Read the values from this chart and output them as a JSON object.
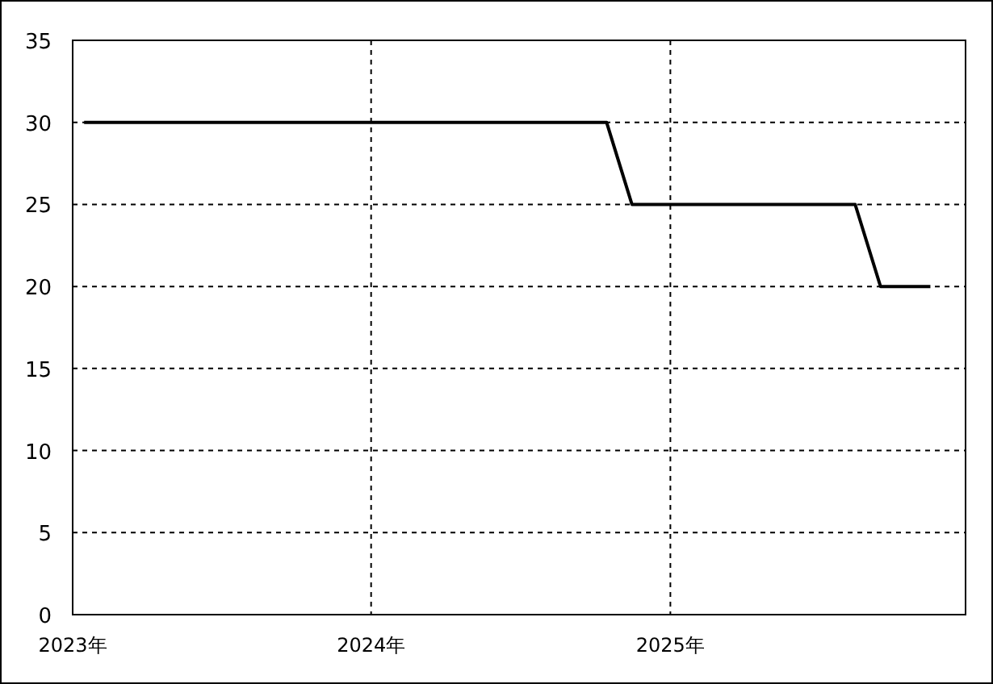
{
  "chart_data": {
    "type": "line",
    "x": [
      "2023-01-15",
      "2024-10-15",
      "2024-11-15",
      "2025-08-15",
      "2025-09-15",
      "2025-11-15"
    ],
    "series": [
      {
        "color": "#000000",
        "values": [
          30,
          30,
          25,
          25,
          20,
          20
        ]
      }
    ],
    "xlim": [
      "2023-01-01",
      "2025-12-28"
    ],
    "xticks": [
      {
        "value": "2023",
        "label": "2023年"
      },
      {
        "value": "2024",
        "label": "2024年"
      },
      {
        "value": "2025",
        "label": "2025年"
      }
    ],
    "ylim": [
      0,
      35
    ],
    "yticks": [
      0,
      5,
      10,
      15,
      20,
      25,
      30,
      35
    ],
    "grid": true,
    "line_style": "solid"
  }
}
